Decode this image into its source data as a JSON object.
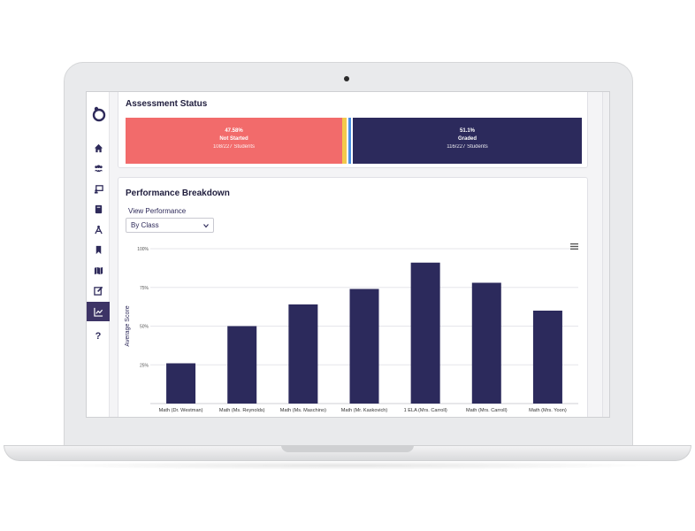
{
  "sidebar": {
    "items": [
      {
        "icon": "home-icon"
      },
      {
        "icon": "users-icon"
      },
      {
        "icon": "classroom-icon"
      },
      {
        "icon": "book-icon"
      },
      {
        "icon": "compass-icon"
      },
      {
        "icon": "bookmark-icon"
      },
      {
        "icon": "map-icon"
      },
      {
        "icon": "edit-icon"
      },
      {
        "icon": "chart-icon",
        "active": true
      },
      {
        "icon": "help-icon",
        "label": "?"
      }
    ]
  },
  "assessment_status": {
    "title": "Assessment Status",
    "not_started": {
      "percent": "47.58%",
      "label": "Not Started",
      "count": "108/227 Students",
      "color": "#f26b6b"
    },
    "graded": {
      "percent": "51.1%",
      "label": "Graded",
      "count": "116/227 Students",
      "color": "#2c2a5c"
    }
  },
  "performance": {
    "title": "Performance Breakdown",
    "view_label": "View Performance",
    "selected_view": "By Class"
  },
  "chart_data": {
    "type": "bar",
    "categories": [
      "Math (Dr. Westman)",
      "Math (Ms. Reynolds)",
      "Math (Ms. Maschino)",
      "Math (Mr. Kaskovich)",
      "1 ELA (Mrs. Carroll)",
      "Math (Mrs. Carroll)",
      "Math (Mrs. Yoon)"
    ],
    "values": [
      26,
      50,
      64,
      74,
      91,
      78,
      60
    ],
    "ylabel": "Average Score",
    "yticks": [
      "25%",
      "50%",
      "75%",
      "100%"
    ],
    "ylim": [
      0,
      100
    ],
    "bar_color": "#2c2a5c",
    "grid": true
  }
}
